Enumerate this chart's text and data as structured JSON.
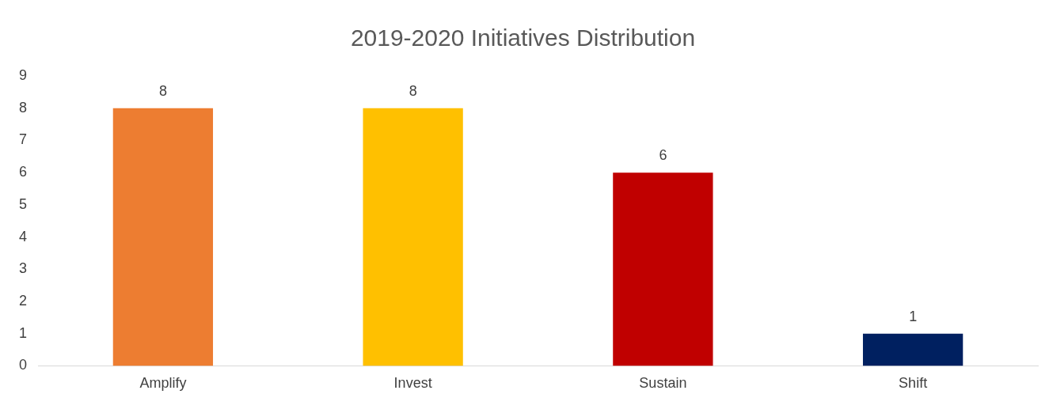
{
  "chart_data": {
    "type": "bar",
    "title": "2019-2020 Initiatives Distribution",
    "categories": [
      "Amplify",
      "Invest",
      "Sustain",
      "Shift"
    ],
    "values": [
      8,
      8,
      6,
      1
    ],
    "colors": [
      "#ed7d31",
      "#ffc000",
      "#c00000",
      "#002060"
    ],
    "ylim": [
      0,
      9
    ],
    "yticks": [
      0,
      1,
      2,
      3,
      4,
      5,
      6,
      7,
      8,
      9
    ],
    "grid": false,
    "legend": false,
    "data_labels": true
  }
}
